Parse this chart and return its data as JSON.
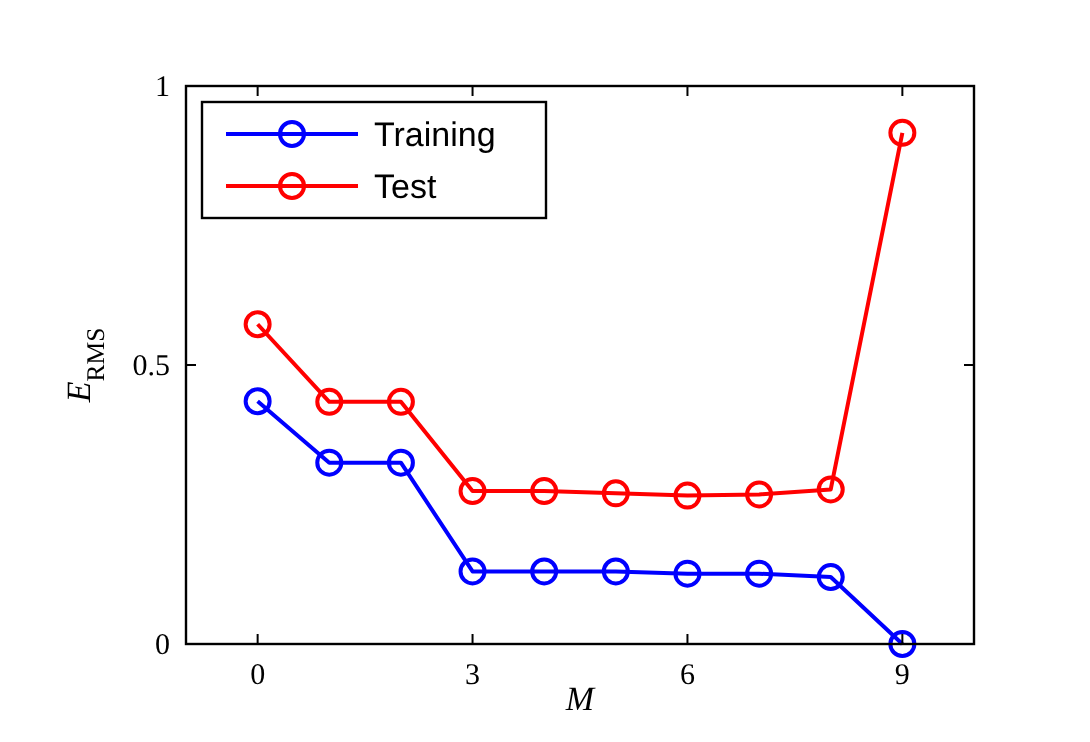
{
  "chart_data": {
    "type": "line",
    "xlabel": "M",
    "ylabel": "E$_{RMS}$",
    "x": [
      0,
      1,
      2,
      3,
      4,
      5,
      6,
      7,
      8,
      9
    ],
    "series": [
      {
        "name": "Training",
        "color": "#0000ff",
        "values": [
          0.435,
          0.325,
          0.325,
          0.13,
          0.13,
          0.13,
          0.126,
          0.126,
          0.12,
          0
        ]
      },
      {
        "name": "Test",
        "color": "#ff0000",
        "values": [
          0.573,
          0.434,
          0.434,
          0.274,
          0.274,
          0.27,
          0.266,
          0.268,
          0.277,
          0.916
        ]
      }
    ],
    "xlim": [
      -1,
      10
    ],
    "xticks": [
      0,
      3,
      6,
      9
    ],
    "ylim": [
      0,
      1
    ],
    "yticks": [
      0,
      0.5,
      1
    ],
    "marker": "circle",
    "legend": "top left",
    "grid": false
  }
}
